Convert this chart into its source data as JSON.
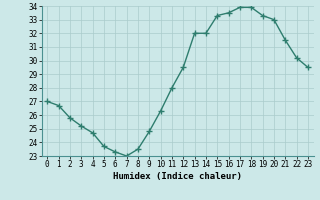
{
  "x": [
    0,
    1,
    2,
    3,
    4,
    5,
    6,
    7,
    8,
    9,
    10,
    11,
    12,
    13,
    14,
    15,
    16,
    17,
    18,
    19,
    20,
    21,
    22,
    23
  ],
  "y": [
    27.0,
    26.7,
    25.8,
    25.2,
    24.7,
    23.7,
    23.3,
    23.0,
    23.5,
    24.8,
    26.3,
    28.0,
    29.5,
    32.0,
    32.0,
    33.3,
    33.5,
    33.9,
    33.9,
    33.3,
    33.0,
    31.5,
    30.2,
    29.5
  ],
  "line_color": "#2e7d6e",
  "marker": "+",
  "marker_size": 4,
  "bg_color": "#cce8e8",
  "grid_color": "#b8d8d8",
  "xlabel": "Humidex (Indice chaleur)",
  "ylim": [
    23,
    34
  ],
  "xlim": [
    -0.5,
    23.5
  ],
  "yticks": [
    23,
    24,
    25,
    26,
    27,
    28,
    29,
    30,
    31,
    32,
    33,
    34
  ],
  "xticks": [
    0,
    1,
    2,
    3,
    4,
    5,
    6,
    7,
    8,
    9,
    10,
    11,
    12,
    13,
    14,
    15,
    16,
    17,
    18,
    19,
    20,
    21,
    22,
    23
  ],
  "label_fontsize": 6.5,
  "tick_fontsize": 5.5,
  "spine_color": "#4a9090",
  "line_width": 1.0
}
